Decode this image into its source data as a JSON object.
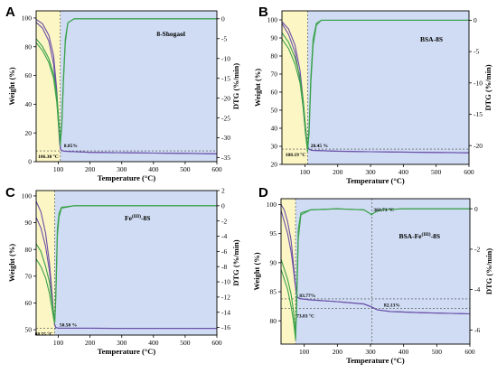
{
  "colors": {
    "weight_line": "#6a4fa8",
    "dtg_line": "#3aa14a",
    "shade_initial": "#fbf6c4",
    "shade_main": "#cfdcf3",
    "axis": "#000000",
    "guide": "#444444"
  },
  "chart_data": [
    {
      "letter": "A",
      "type": "line",
      "sample_label": "8-Shogaol",
      "xlabel": "Temperature (°C)",
      "ylabel_left": "Weight (%)",
      "ylabel_right": "DTG (%/min)",
      "xlim": [
        30,
        600
      ],
      "ylim_left": [
        0,
        105
      ],
      "ylim_right": [
        -36,
        2
      ],
      "xticks": [
        100,
        200,
        300,
        400,
        500,
        600
      ],
      "yticks_left": [
        0,
        20,
        40,
        60,
        80,
        100
      ],
      "yticks_right": [
        0,
        -5,
        -10,
        -15,
        -20,
        -25,
        -30,
        -35
      ],
      "region_split_x": 106.3,
      "series": [
        {
          "axis": "left",
          "role": "weight",
          "x": [
            30,
            50,
            70,
            85,
            95,
            100,
            104,
            107,
            110,
            120,
            200,
            300,
            400,
            500,
            600
          ],
          "y": [
            99,
            96,
            88,
            74,
            50,
            30,
            14,
            9,
            7.8,
            7.2,
            6.5,
            6.2,
            6.0,
            5.8,
            5.5
          ]
        },
        {
          "axis": "left",
          "role": "weight",
          "x": [
            30,
            50,
            70,
            85,
            95,
            100,
            104,
            107,
            110,
            120,
            200,
            300,
            400,
            500,
            600
          ],
          "y": [
            97,
            93,
            84,
            68,
            46,
            27,
            13,
            8.5,
            7.8,
            7.2,
            6.5,
            6.2,
            6.0,
            5.8,
            5.5
          ]
        },
        {
          "axis": "right",
          "role": "dtg",
          "x": [
            30,
            50,
            70,
            85,
            95,
            101,
            106,
            111,
            116,
            122,
            130,
            150,
            200,
            300,
            400,
            500,
            600
          ],
          "y": [
            -5,
            -7,
            -10,
            -14,
            -19,
            -25,
            -31,
            -26,
            -15,
            -5,
            -1,
            0,
            0,
            0,
            0,
            0,
            0
          ]
        },
        {
          "axis": "right",
          "role": "dtg",
          "x": [
            30,
            50,
            70,
            85,
            95,
            101,
            106,
            111,
            116,
            122,
            130,
            150,
            200,
            300,
            400,
            500,
            600
          ],
          "y": [
            -6,
            -8,
            -11,
            -15,
            -21,
            -27,
            -32,
            -27,
            -16,
            -6,
            -1,
            0,
            0,
            0,
            0,
            0,
            0
          ]
        }
      ],
      "annotations": [
        {
          "text": "106.30 °C",
          "x": 106.3,
          "axis": "left",
          "y": 7.5
        },
        {
          "text": "8.85%",
          "x": 112,
          "axis": "left",
          "y": 8.85
        }
      ],
      "guides": [
        {
          "x": 106.3
        },
        {
          "y_left": 7.5
        }
      ]
    },
    {
      "letter": "B",
      "type": "line",
      "sample_label": "BSA-8S",
      "xlabel": "Temperature (°C)",
      "ylabel_left": "Weight (%)",
      "ylabel_right": "DTG (%/min)",
      "xlim": [
        30,
        600
      ],
      "ylim_left": [
        20,
        105
      ],
      "ylim_right": [
        -23,
        1.5
      ],
      "xticks": [
        100,
        200,
        300,
        400,
        500,
        600
      ],
      "yticks_left": [
        20,
        30,
        40,
        50,
        60,
        70,
        80,
        90,
        100
      ],
      "yticks_right": [
        0,
        -5,
        -10,
        -15,
        -20
      ],
      "region_split_x": 108.19,
      "series": [
        {
          "axis": "left",
          "role": "weight",
          "x": [
            30,
            50,
            70,
            85,
            95,
            102,
            107,
            112,
            120,
            200,
            300,
            400,
            500,
            600
          ],
          "y": [
            99,
            95,
            86,
            72,
            55,
            40,
            31,
            28.5,
            27.8,
            27.3,
            27.0,
            26.8,
            26.6,
            26.4
          ]
        },
        {
          "axis": "left",
          "role": "weight",
          "x": [
            30,
            50,
            70,
            85,
            95,
            102,
            107,
            112,
            120,
            200,
            300,
            400,
            500,
            600
          ],
          "y": [
            98,
            92,
            82,
            67,
            51,
            37,
            30,
            28.5,
            27.8,
            27.3,
            27.0,
            26.8,
            26.6,
            26.4
          ]
        },
        {
          "axis": "right",
          "role": "dtg",
          "x": [
            30,
            50,
            70,
            85,
            95,
            102,
            108,
            113,
            118,
            125,
            135,
            150,
            200,
            300,
            400,
            500,
            600
          ],
          "y": [
            -2,
            -3.5,
            -6,
            -9,
            -13,
            -17,
            -20.5,
            -17,
            -9,
            -3,
            -0.5,
            0,
            0,
            0,
            0,
            0,
            0
          ]
        },
        {
          "axis": "right",
          "role": "dtg",
          "x": [
            30,
            50,
            70,
            85,
            95,
            102,
            108,
            113,
            118,
            125,
            135,
            150,
            200,
            300,
            400,
            500,
            600
          ],
          "y": [
            -3,
            -4.5,
            -7,
            -10,
            -14,
            -18,
            -21,
            -18,
            -10,
            -4,
            -0.8,
            0,
            0,
            0,
            0,
            0,
            0
          ]
        }
      ],
      "annotations": [
        {
          "text": "108.19 °C",
          "x": 108.19,
          "axis": "left",
          "y": 28.45
        },
        {
          "text": "28.45 %",
          "x": 112,
          "axis": "left",
          "y": 28.45
        }
      ],
      "guides": [
        {
          "x": 108.19
        },
        {
          "y_left": 28.45
        }
      ]
    },
    {
      "letter": "C",
      "type": "line",
      "sample_label": "Fe(III)-8S",
      "sample_base": "Fe",
      "sample_sup": "(III)",
      "sample_suffix": "-8S",
      "xlabel": "Temperature (°C)",
      "ylabel_left": "Weight (%)",
      "ylabel_right": "DTG (%/min)",
      "xlim": [
        30,
        600
      ],
      "ylim_left": [
        48,
        102
      ],
      "ylim_right": [
        -17,
        2
      ],
      "xticks": [
        100,
        200,
        300,
        400,
        500,
        600
      ],
      "yticks_left": [
        50,
        60,
        70,
        80,
        90,
        100
      ],
      "yticks_right": [
        2,
        0,
        -2,
        -4,
        -6,
        -8,
        -10,
        -12,
        -14,
        -16
      ],
      "region_split_x": 88.55,
      "series": [
        {
          "axis": "left",
          "role": "weight",
          "x": [
            30,
            45,
            60,
            72,
            80,
            85,
            88,
            92,
            100,
            200,
            300,
            400,
            500,
            600
          ],
          "y": [
            98,
            94,
            86,
            75,
            64,
            56,
            52,
            50.8,
            50.6,
            50.55,
            50.5,
            50.5,
            50.5,
            50.5
          ]
        },
        {
          "axis": "left",
          "role": "weight",
          "x": [
            30,
            45,
            60,
            72,
            80,
            85,
            88,
            92,
            100,
            200,
            300,
            400,
            500,
            600
          ],
          "y": [
            92,
            88,
            81,
            72,
            63,
            56,
            52,
            50.8,
            50.6,
            50.55,
            50.5,
            50.5,
            50.5,
            50.5
          ]
        },
        {
          "axis": "right",
          "role": "dtg",
          "x": [
            30,
            45,
            60,
            72,
            80,
            85,
            88.5,
            91,
            94,
            97,
            102,
            110,
            150,
            200,
            300,
            400,
            500,
            600
          ],
          "y": [
            -5,
            -6,
            -8,
            -10,
            -12.5,
            -14,
            -15.3,
            -13,
            -8,
            -3,
            -1,
            -0.2,
            0,
            0,
            0,
            0,
            0,
            0
          ]
        },
        {
          "axis": "right",
          "role": "dtg",
          "x": [
            30,
            45,
            60,
            72,
            80,
            85,
            88.5,
            91,
            94,
            97,
            102,
            110,
            150,
            200,
            300,
            400,
            500,
            600
          ],
          "y": [
            -7,
            -8,
            -9.5,
            -11.5,
            -13.5,
            -14.8,
            -15.5,
            -13.5,
            -9,
            -4,
            -1.5,
            -0.3,
            0,
            0,
            0,
            0,
            0,
            0
          ]
        }
      ],
      "annotations": [
        {
          "text": "88.55 °C",
          "x": 88.55,
          "axis": "left",
          "y": 50.5
        },
        {
          "text": "50.50 %",
          "x": 98,
          "axis": "left",
          "y": 50.5
        }
      ],
      "guides": [
        {
          "x": 88.55
        },
        {
          "y_left": 50.5
        }
      ]
    },
    {
      "letter": "D",
      "type": "line",
      "sample_label": "BSA-Fe(III)-8S",
      "sample_base": "BSA-Fe",
      "sample_sup": "(III)",
      "sample_suffix": "-8S",
      "xlabel": "Temperature (°C)",
      "ylabel_left": "Weight (%)",
      "ylabel_right": "DTG (%/min)",
      "xlim": [
        30,
        600
      ],
      "ylim_left": [
        76,
        101
      ],
      "ylim_right": [
        -6.7,
        0.5
      ],
      "xticks": [
        100,
        200,
        300,
        400,
        500,
        600
      ],
      "yticks_left": [
        80,
        85,
        90,
        95,
        100
      ],
      "yticks_right": [
        0,
        -2,
        -4,
        -6
      ],
      "region_split_x": 73.83,
      "series": [
        {
          "axis": "left",
          "role": "weight",
          "x": [
            30,
            40,
            50,
            60,
            67,
            72,
            76,
            80,
            90,
            120,
            200,
            280,
            303,
            320,
            360,
            450,
            600
          ],
          "y": [
            100,
            99,
            97,
            94,
            90,
            87,
            85,
            84,
            83.8,
            83.6,
            83.3,
            82.9,
            82.4,
            81.9,
            81.6,
            81.4,
            81.2
          ]
        },
        {
          "axis": "left",
          "role": "weight",
          "x": [
            30,
            40,
            50,
            60,
            67,
            72,
            76,
            80,
            90,
            120,
            200,
            280,
            303,
            320,
            360,
            450,
            600
          ],
          "y": [
            99,
            97,
            95,
            92,
            89,
            86.5,
            85,
            84,
            83.8,
            83.6,
            83.3,
            82.9,
            82.4,
            81.9,
            81.6,
            81.4,
            81.2
          ]
        },
        {
          "axis": "right",
          "role": "dtg",
          "x": [
            30,
            40,
            50,
            60,
            67,
            72,
            74,
            77,
            82,
            90,
            120,
            200,
            280,
            300,
            303,
            310,
            330,
            400,
            600
          ],
          "y": [
            -2.5,
            -3,
            -3.5,
            -4.2,
            -5,
            -5.8,
            -6.2,
            -4.5,
            -1,
            -0.2,
            -0.05,
            0,
            -0.05,
            -0.25,
            -0.3,
            -0.2,
            -0.05,
            0,
            0
          ]
        },
        {
          "axis": "right",
          "role": "dtg",
          "x": [
            30,
            40,
            50,
            60,
            67,
            72,
            74,
            77,
            82,
            90,
            120,
            200,
            280,
            300,
            303,
            310,
            330,
            400,
            600
          ],
          "y": [
            -3,
            -3.5,
            -4,
            -4.8,
            -5.5,
            -6.2,
            -6.5,
            -5,
            -1.5,
            -0.3,
            -0.05,
            0,
            -0.05,
            -0.25,
            -0.3,
            -0.2,
            -0.05,
            0,
            0
          ]
        }
      ],
      "annotations": [
        {
          "text": "303.73 °C",
          "x": 303.73,
          "axis": "right",
          "y": -0.3
        },
        {
          "text": "83.77%",
          "x": 80,
          "axis": "left",
          "y": 83.77
        },
        {
          "text": "82.13%",
          "x": 335,
          "axis": "left",
          "y": 82.13
        },
        {
          "text": "73.83 °C",
          "x": 73.83,
          "axis": "left",
          "y": 82.13
        }
      ],
      "guides": [
        {
          "x": 73.83
        },
        {
          "x": 303.73
        },
        {
          "y_left": 83.77
        },
        {
          "y_left": 82.13
        }
      ]
    }
  ]
}
